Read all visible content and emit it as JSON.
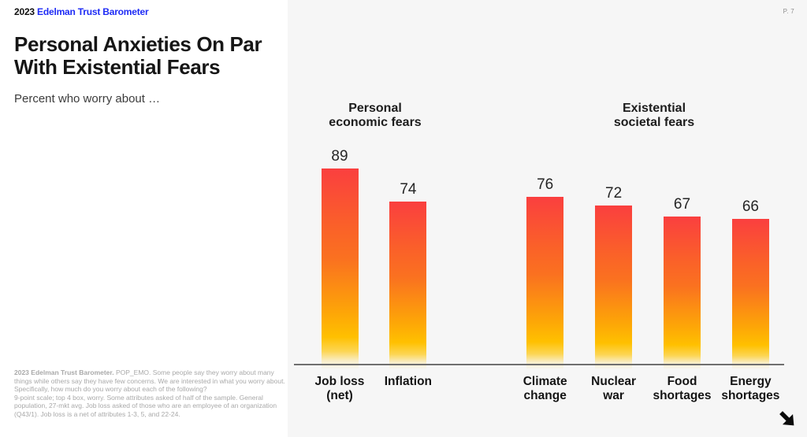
{
  "header": {
    "year": "2023",
    "brand": "Edelman Trust Barometer",
    "page_number": "P. 7"
  },
  "left_panel": {
    "title": "Personal Anxieties On Par\nWith Existential Fears",
    "subtitle": "Percent who worry about …",
    "footnote_bold": "2023 Edelman Trust Barometer.",
    "footnote_rest": " POP_EMO. Some people say they worry about many\nthings while others say they have few concerns. We are interested in what you worry about.\nSpecifically, how much do you worry about each of the following?\n9-point scale; top 4 box, worry. Some attributes asked of half of the sample. General\npopulation, 27-mkt avg. Job loss asked of those who are an employee of an organization\n(Q43/1). Job loss is a net of attributes 1-3, 5, and 22-24."
  },
  "chart_data": {
    "type": "bar",
    "title": "Percent who worry about …",
    "categories": [
      "Job loss (net)",
      "Inflation",
      "Climate change",
      "Nuclear war",
      "Food shortages",
      "Energy shortages"
    ],
    "values": [
      89,
      74,
      76,
      72,
      67,
      66
    ],
    "groups": [
      {
        "label": "Personal\neconomic fears",
        "categories": [
          "Job loss\n(net)",
          "Inflation"
        ],
        "values": [
          89,
          74
        ]
      },
      {
        "label": "Existential\nsocietal fears",
        "categories": [
          "Climate\nchange",
          "Nuclear\nwar",
          "Food\nshortages",
          "Energy\nshortages"
        ],
        "values": [
          76,
          72,
          67,
          66
        ]
      }
    ],
    "ylim": [
      0,
      100
    ],
    "grid": false,
    "legend": false,
    "value_labels_shown": true,
    "bar_gradient_top_to_bottom": [
      "#fa3f3f",
      "#fa7121",
      "#fda607",
      "#ffc000",
      "#fff0c8"
    ],
    "colors": {
      "accent_blue": "#1e2bf5",
      "axis_line": "#6f6f6f",
      "panel_bg": "#f6f6f6"
    }
  },
  "icons": {
    "next_arrow": "arrow-south-east"
  }
}
